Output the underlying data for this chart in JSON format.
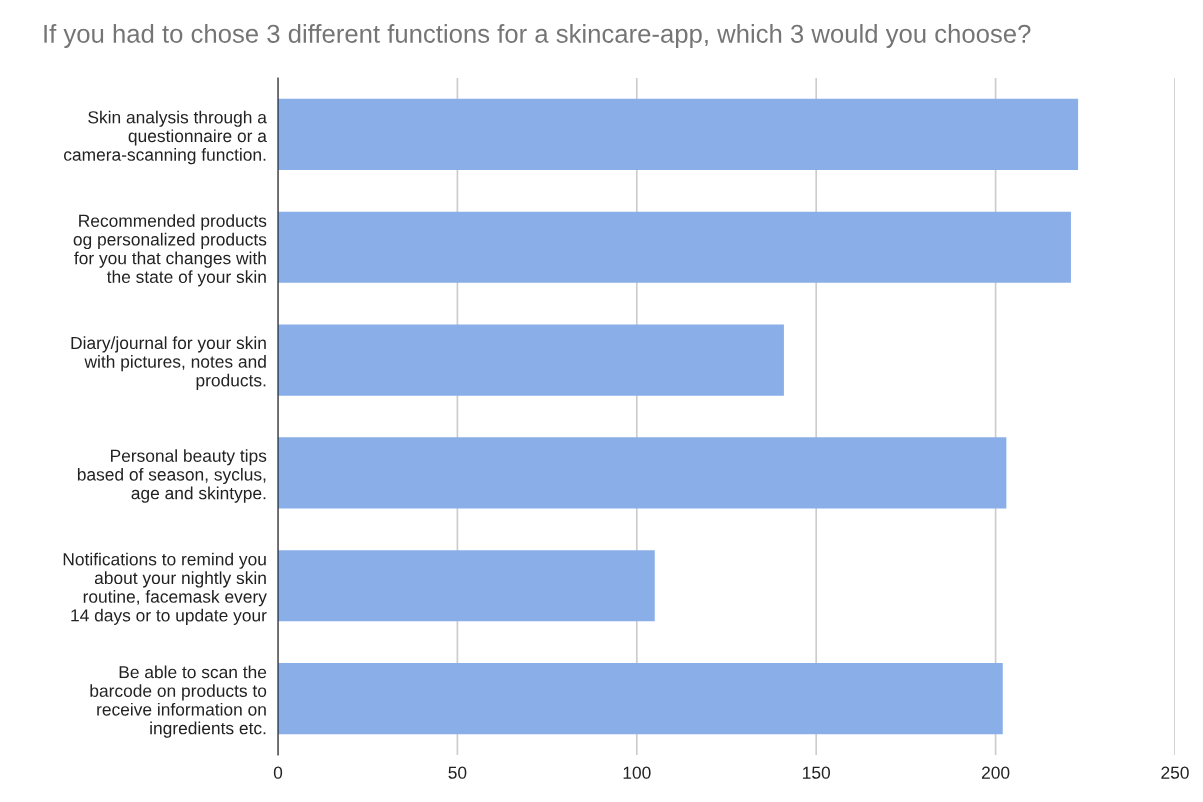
{
  "chart_data": {
    "type": "bar",
    "orientation": "horizontal",
    "title": "If you had to chose 3 different functions for a skincare-app, which 3 would you choose?",
    "categories": [
      "Skin analysis through a\nquestionnaire or a\ncamera-scanning function.",
      "Recommended products\nog personalized products\nfor you that changes with\nthe state of your skin",
      "Diary/journal for your skin\nwith pictures, notes and\nproducts.",
      "Personal beauty tips\nbased of season, syclus,\nage and skintype.",
      "Notifications to remind you\nabout your nightly skin\nroutine, facemask every\n14 days or to update your",
      "Be able to scan the\nbarcode on products to\nreceive information on\ningredients etc."
    ],
    "values": [
      223,
      221,
      141,
      203,
      105,
      202
    ],
    "color": "#8aaee8",
    "xlim": [
      0,
      250
    ],
    "xticks": [
      0,
      50,
      100,
      150,
      200,
      250
    ],
    "grid": "x"
  }
}
